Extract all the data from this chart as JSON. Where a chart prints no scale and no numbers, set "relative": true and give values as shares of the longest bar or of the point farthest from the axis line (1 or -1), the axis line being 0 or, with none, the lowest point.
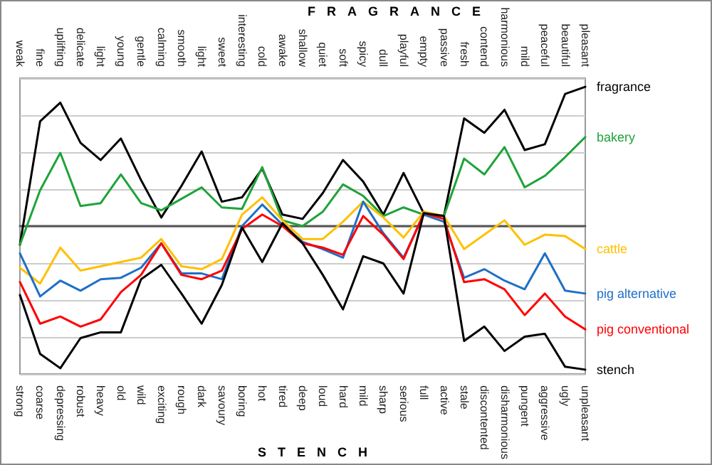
{
  "chart_data": {
    "type": "line",
    "relative": true,
    "grid": "y",
    "legend": false,
    "marker": "none",
    "line_style": "solid",
    "xlabel": "STENCH",
    "x2label": "FRAGRANCE",
    "categories": [
      "strong",
      "coarse",
      "depressing",
      "robust",
      "heavy",
      "old",
      "wild",
      "exciting",
      "rough",
      "dark",
      "savoury",
      "boring",
      "hot",
      "tired",
      "deep",
      "loud",
      "hard",
      "mild",
      "sharp",
      "serious",
      "full",
      "active",
      "stale",
      "discontented",
      "disharmonious",
      "pungent",
      "aggressive",
      "ugly",
      "unpleasant"
    ],
    "annotations": [
      "weak",
      "fine",
      "uplifting",
      "delicate",
      "light",
      "young",
      "gentle",
      "calming",
      "smooth",
      "light",
      "sweet",
      "interesting",
      "cold",
      "awake",
      "shallow",
      "quiet",
      "soft",
      "spicy",
      "dull",
      "playful",
      "empty",
      "passive",
      "fresh",
      "contend",
      "harmonious",
      "mild",
      "peaceful",
      "beautiful",
      "pleasant"
    ],
    "series": [
      {
        "name": "fragrance",
        "color": "#000000",
        "values": [
          -0.13,
          0.73,
          0.86,
          0.58,
          0.46,
          0.61,
          0.32,
          0.06,
          0.28,
          0.52,
          0.17,
          0.2,
          0.4,
          0.08,
          0.05,
          0.23,
          0.46,
          0.31,
          0.08,
          0.37,
          0.09,
          0.07,
          0.75,
          0.65,
          0.81,
          0.53,
          0.57,
          0.92,
          0.97
        ]
      },
      {
        "name": "bakery",
        "color": "#1fa33a",
        "values": [
          -0.13,
          0.25,
          0.51,
          0.14,
          0.16,
          0.36,
          0.16,
          0.11,
          0.19,
          0.27,
          0.13,
          0.12,
          0.41,
          0.04,
          0,
          0.1,
          0.29,
          0.21,
          0.07,
          0.13,
          0.08,
          0.07,
          0.47,
          0.36,
          0.55,
          0.27,
          0.35,
          0.48,
          0.62
        ]
      },
      {
        "name": "cattle",
        "color": "#ffc000",
        "values": [
          -0.29,
          -0.4,
          -0.15,
          -0.31,
          -0.28,
          -0.25,
          -0.22,
          -0.09,
          -0.28,
          -0.3,
          -0.23,
          0.08,
          0.2,
          0.04,
          -0.09,
          -0.09,
          0.03,
          0.17,
          0.06,
          -0.08,
          0.1,
          0.07,
          -0.16,
          -0.06,
          0.04,
          -0.13,
          -0.06,
          -0.07,
          -0.16
        ]
      },
      {
        "name": "pig alternative",
        "color": "#1f6fc6",
        "values": [
          -0.19,
          -0.49,
          -0.38,
          -0.45,
          -0.37,
          -0.36,
          -0.29,
          -0.12,
          -0.33,
          -0.33,
          -0.37,
          0,
          0.15,
          0.01,
          -0.11,
          -0.16,
          -0.22,
          0.17,
          -0.05,
          -0.22,
          0.08,
          0.03,
          -0.36,
          -0.3,
          -0.38,
          -0.44,
          -0.19,
          -0.45,
          -0.47
        ]
      },
      {
        "name": "pig conventional",
        "color": "#ff0000",
        "values": [
          -0.39,
          -0.68,
          -0.63,
          -0.7,
          -0.65,
          -0.46,
          -0.34,
          -0.12,
          -0.34,
          -0.37,
          -0.31,
          -0.02,
          0.08,
          0,
          -0.12,
          -0.15,
          -0.2,
          0.07,
          -0.06,
          -0.23,
          0.09,
          0.05,
          -0.39,
          -0.37,
          -0.44,
          -0.62,
          -0.47,
          -0.63,
          -0.72
        ]
      },
      {
        "name": "stench",
        "color": "#000000",
        "values": [
          -0.48,
          -0.89,
          -0.99,
          -0.78,
          -0.74,
          -0.74,
          -0.37,
          -0.27,
          -0.47,
          -0.68,
          -0.41,
          -0.01,
          -0.25,
          0.02,
          -0.12,
          -0.34,
          -0.58,
          -0.21,
          -0.26,
          -0.47,
          0.09,
          0.07,
          -0.8,
          -0.7,
          -0.87,
          -0.77,
          -0.75,
          -0.98,
          -1
        ]
      }
    ]
  }
}
